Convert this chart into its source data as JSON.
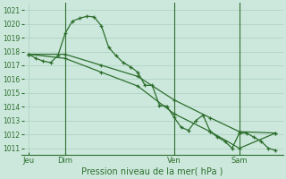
{
  "bg_color": "#cce8dc",
  "grid_color": "#aacfbe",
  "line_color": "#2d6e2d",
  "title": "Pression niveau de la mer( hPa )",
  "ylim": [
    1010.5,
    1021.5
  ],
  "yticks": [
    1011,
    1012,
    1013,
    1014,
    1015,
    1016,
    1017,
    1018,
    1019,
    1020,
    1021
  ],
  "xlim": [
    0,
    72
  ],
  "xtick_positions": [
    2,
    12,
    42,
    60
  ],
  "xtick_labels": [
    "Jeu",
    "Dim",
    "Ven",
    "Sam"
  ],
  "vline_positions": [
    12,
    42,
    60
  ],
  "series1_x": [
    2,
    4,
    6,
    8,
    10,
    12,
    14,
    16,
    18,
    20,
    22,
    24,
    26,
    28,
    30,
    32,
    34,
    36,
    38,
    40,
    42,
    44,
    46,
    48,
    50,
    52,
    54,
    56,
    58,
    60,
    62,
    64,
    66,
    68,
    70
  ],
  "series1_y": [
    1017.8,
    1017.5,
    1017.3,
    1017.2,
    1017.7,
    1019.3,
    1020.2,
    1020.4,
    1020.55,
    1020.5,
    1019.85,
    1018.3,
    1017.7,
    1017.2,
    1016.9,
    1016.5,
    1015.55,
    1015.55,
    1014.1,
    1014.05,
    1013.25,
    1012.5,
    1012.3,
    1013.0,
    1013.4,
    1012.2,
    1011.8,
    1011.5,
    1011.0,
    1012.1,
    1012.1,
    1011.8,
    1011.5,
    1011.0,
    1010.85
  ],
  "series2_x": [
    2,
    12,
    22,
    32,
    42,
    52,
    60,
    70
  ],
  "series2_y": [
    1017.8,
    1017.8,
    1017.0,
    1016.2,
    1014.5,
    1013.2,
    1012.2,
    1012.1
  ],
  "series3_x": [
    2,
    12,
    22,
    32,
    42,
    52,
    60,
    70
  ],
  "series3_y": [
    1017.8,
    1017.5,
    1016.5,
    1015.5,
    1013.5,
    1012.2,
    1011.0,
    1012.1
  ]
}
